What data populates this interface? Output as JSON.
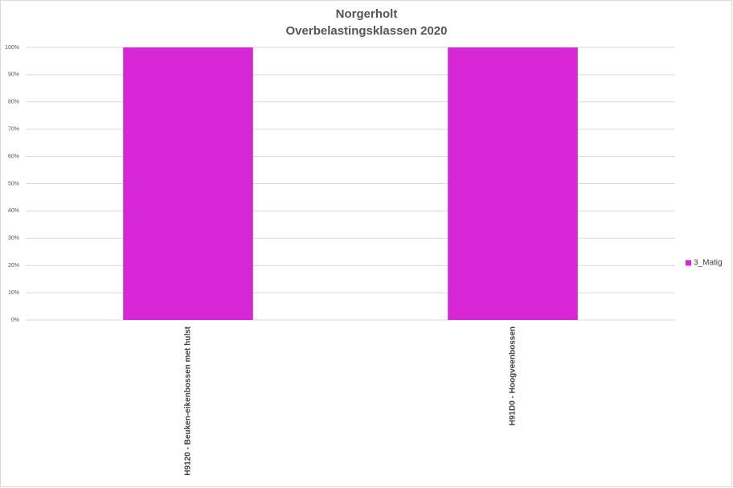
{
  "chart_data": {
    "type": "bar",
    "stacked": true,
    "title": "Norgerholt",
    "subtitle": "Overbelastingsklassen 2020",
    "categories": [
      "H9120 - Beuken-eikenbossen met hulst",
      "H91D0 - Hoogveenbossen"
    ],
    "series": [
      {
        "name": "3_Matig",
        "color": "#d626d6",
        "values": [
          100,
          100
        ]
      }
    ],
    "ylim": [
      0,
      100
    ],
    "yticks": [
      {
        "value": 0,
        "label": "0%"
      },
      {
        "value": 10,
        "label": "10%"
      },
      {
        "value": 20,
        "label": "20%"
      },
      {
        "value": 30,
        "label": "30%"
      },
      {
        "value": 40,
        "label": "40%"
      },
      {
        "value": 50,
        "label": "50%"
      },
      {
        "value": 60,
        "label": "60%"
      },
      {
        "value": 70,
        "label": "70%"
      },
      {
        "value": 80,
        "label": "80%"
      },
      {
        "value": 90,
        "label": "90%"
      },
      {
        "value": 100,
        "label": "100%"
      }
    ],
    "grid": true,
    "legend": "right"
  }
}
